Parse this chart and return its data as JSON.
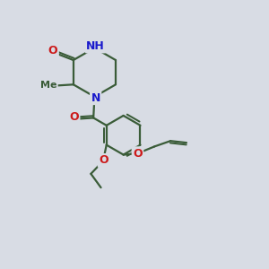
{
  "bg_color": "#d8dce4",
  "bond_color": "#3a5c38",
  "bond_width": 1.6,
  "N_color": "#1a1acc",
  "O_color": "#cc1a1a",
  "font_size": 8.5,
  "fig_size": [
    3.0,
    3.0
  ],
  "dpi": 100,
  "xlim": [
    -1,
    11
  ],
  "ylim": [
    -1,
    11
  ]
}
